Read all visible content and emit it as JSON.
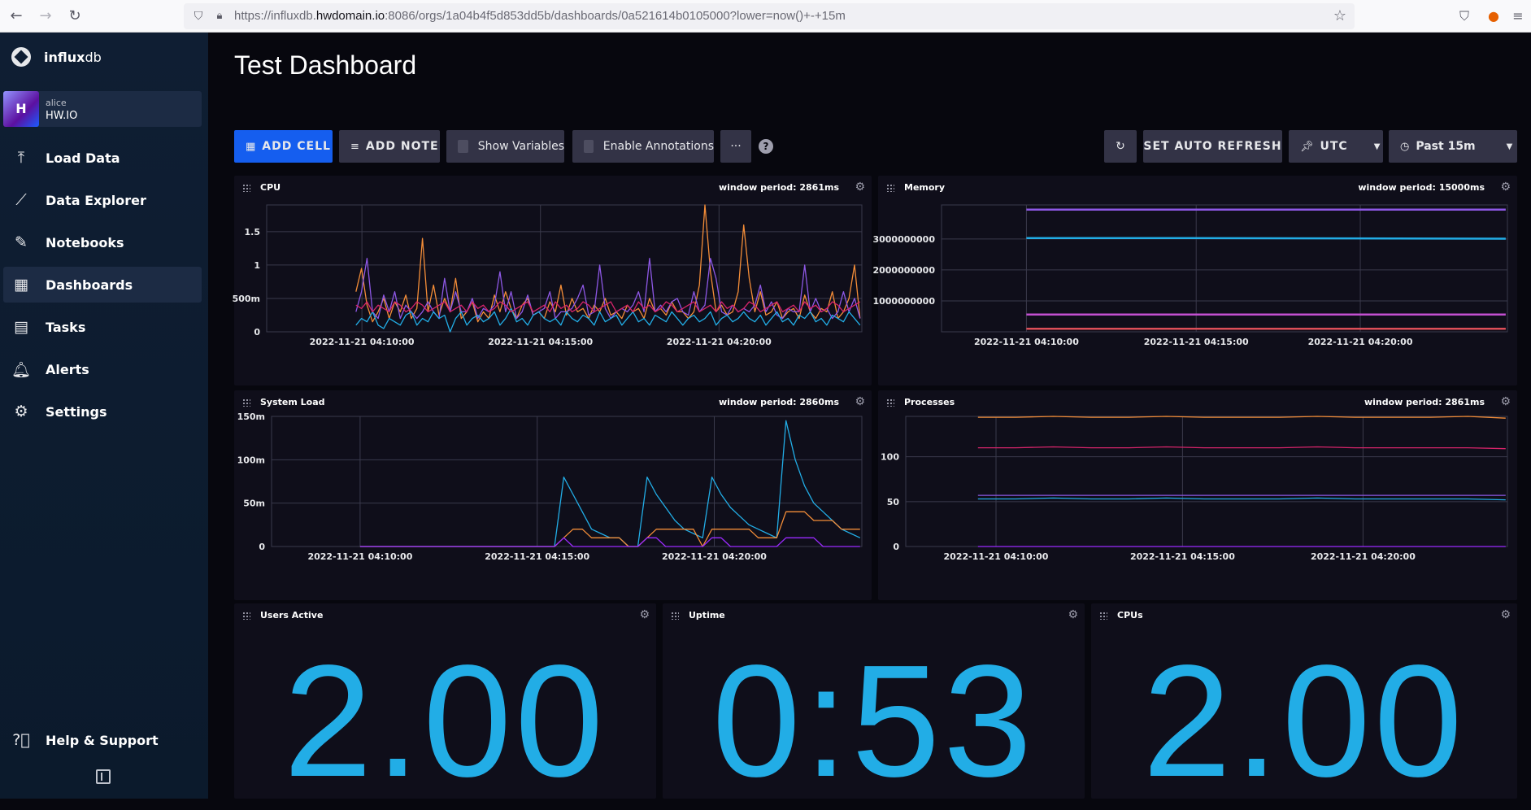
{
  "browser": {
    "url_prefix": "https://influxdb.",
    "url_domain": "hwdomain.io",
    "url_suffix": ":8086/orgs/1a04b4f5d853dd5b/dashboards/0a521614b0105000?lower=now()+-+15m"
  },
  "sidebar": {
    "logo_bold": "influx",
    "logo_light": "db",
    "user": {
      "initial": "H",
      "name": "alice",
      "org": "HW.IO"
    },
    "items": [
      {
        "label": "Load Data",
        "icon": "upload-icon"
      },
      {
        "label": "Data Explorer",
        "icon": "graph-icon"
      },
      {
        "label": "Notebooks",
        "icon": "pencil-icon"
      },
      {
        "label": "Dashboards",
        "icon": "dashboard-icon"
      },
      {
        "label": "Tasks",
        "icon": "calendar-icon"
      },
      {
        "label": "Alerts",
        "icon": "bell-icon"
      },
      {
        "label": "Settings",
        "icon": "gear-icon"
      }
    ],
    "help": "Help & Support"
  },
  "dashboard": {
    "title": "Test Dashboard",
    "toolbar": {
      "add_cell": "ADD CELL",
      "add_note": "ADD NOTE",
      "show_variables": "Show Variables",
      "enable_annotations": "Enable Annotations",
      "more": "···",
      "help": "?",
      "auto_refresh": "SET AUTO REFRESH",
      "timezone": "UTC",
      "time_range": "Past 15m"
    }
  },
  "colors": {
    "blue": "#22ade6",
    "purple": "#8e58e6",
    "orange": "#f48d38",
    "magenta": "#d6246a",
    "red": "#dc4e58",
    "violet": "#9b2aff",
    "pink": "#c24fd0"
  },
  "chart_data": [
    {
      "id": "cpu",
      "type": "line",
      "title": "CPU",
      "period": "window period: 2861ms",
      "yticks": [
        "0",
        "500m",
        "1",
        "1.5"
      ],
      "yvals": [
        0,
        0.5,
        1,
        1.5
      ],
      "ylim": [
        0,
        1.9
      ],
      "xticks": [
        "2022-11-21 04:10:00",
        "2022-11-21 04:15:00",
        "2022-11-21 04:20:00"
      ],
      "series": [
        {
          "color": "#f48d38",
          "values": [
            0.6,
            0.95,
            0.4,
            0.15,
            0.3,
            0.5,
            0.2,
            0.45,
            0.3,
            0.55,
            0.2,
            0.35,
            1.4,
            0.3,
            0.7,
            0.25,
            0.5,
            0.3,
            0.8,
            0.2,
            0.3,
            0.45,
            0.15,
            0.3,
            0.2,
            0.55,
            0.3,
            0.6,
            0.35,
            0.2,
            0.4,
            0.5,
            0.25,
            0.3,
            0.2,
            0.45,
            0.3,
            0.7,
            0.25,
            0.5,
            0.3,
            0.35,
            0.2,
            0.4,
            0.3,
            0.5,
            0.25,
            0.3,
            0.2,
            0.4,
            0.3,
            0.35,
            0.2,
            0.5,
            0.3,
            0.35,
            0.25,
            0.45,
            0.3,
            0.3,
            0.2,
            0.3,
            0.7,
            1.9,
            0.9,
            0.3,
            0.4,
            0.25,
            0.3,
            0.6,
            1.6,
            0.8,
            0.3,
            0.6,
            0.25,
            0.3,
            0.45,
            0.2,
            0.3,
            0.35,
            0.2,
            0.55,
            0.3,
            0.2,
            0.35,
            0.3,
            0.6,
            0.2,
            0.3,
            0.5,
            1.0,
            0.2
          ]
        },
        {
          "color": "#8e58e6",
          "values": [
            0.3,
            0.6,
            1.1,
            0.3,
            0.2,
            0.55,
            0.3,
            0.6,
            0.2,
            0.4,
            0.3,
            0.2,
            0.3,
            0.45,
            0.3,
            0.2,
            0.8,
            0.3,
            0.6,
            0.3,
            0.3,
            0.5,
            0.2,
            0.35,
            0.3,
            0.4,
            0.9,
            0.3,
            0.6,
            0.2,
            0.3,
            0.55,
            0.25,
            0.3,
            0.35,
            0.6,
            0.2,
            0.3,
            0.3,
            0.35,
            0.5,
            0.7,
            0.25,
            0.3,
            1.0,
            0.35,
            0.2,
            0.3,
            0.35,
            0.3,
            0.4,
            0.6,
            0.3,
            1.1,
            0.3,
            0.4,
            0.3,
            0.45,
            0.5,
            0.3,
            0.25,
            0.6,
            0.3,
            0.4,
            1.1,
            0.8,
            0.3,
            0.25,
            0.4,
            0.3,
            0.35,
            0.3,
            0.4,
            0.7,
            0.3,
            0.45,
            0.25,
            0.2,
            0.35,
            0.3,
            0.3,
            1.0,
            0.3,
            0.5,
            0.3,
            0.35,
            0.2,
            0.3,
            0.6,
            0.3,
            0.5,
            0.2
          ]
        },
        {
          "color": "#22ade6",
          "values": [
            0.1,
            0.2,
            0.15,
            0.3,
            0.1,
            0.05,
            0.2,
            0.15,
            0.1,
            0.25,
            0.3,
            0.1,
            0.2,
            0.15,
            0.3,
            0.2,
            0.25,
            0.0,
            0.2,
            0.3,
            0.1,
            0.2,
            0.25,
            0.15,
            0.2,
            0.3,
            0.1,
            0.2,
            0.35,
            0.15,
            0.2,
            0.1,
            0.25,
            0.3,
            0.2,
            0.15,
            0.2,
            0.1,
            0.3,
            0.2,
            0.15,
            0.25,
            0.2,
            0.1,
            0.3,
            0.15,
            0.2,
            0.25,
            0.1,
            0.2,
            0.3,
            0.15,
            0.2,
            0.1,
            0.25,
            0.2,
            0.15,
            0.3,
            0.2,
            0.1,
            0.2,
            0.25,
            0.15,
            0.2,
            0.3,
            0.1,
            0.2,
            0.25,
            0.15,
            0.2,
            0.3,
            0.2,
            0.15,
            0.25,
            0.1,
            0.2,
            0.3,
            0.15,
            0.2,
            0.1,
            0.25,
            0.2,
            0.3,
            0.15,
            0.2,
            0.1,
            0.25,
            0.2,
            0.15,
            0.3,
            0.2,
            0.1
          ]
        },
        {
          "color": "#d6246a",
          "values": [
            0.4,
            0.35,
            0.45,
            0.3,
            0.4,
            0.35,
            0.3,
            0.45,
            0.4,
            0.3,
            0.35,
            0.45,
            0.4,
            0.3,
            0.35,
            0.4,
            0.45,
            0.3,
            0.35,
            0.4,
            0.3,
            0.45,
            0.35,
            0.4,
            0.3,
            0.35,
            0.45,
            0.4,
            0.3,
            0.35,
            0.4,
            0.45,
            0.3,
            0.35,
            0.4,
            0.3,
            0.45,
            0.35,
            0.4,
            0.3,
            0.35,
            0.45,
            0.4,
            0.3,
            0.35,
            0.4,
            0.45,
            0.3,
            0.35,
            0.4,
            0.3,
            0.45,
            0.35,
            0.4,
            0.3,
            0.35,
            0.45,
            0.4,
            0.3,
            0.35,
            0.4,
            0.45,
            0.3,
            0.35,
            0.4,
            0.3,
            0.45,
            0.35,
            0.4,
            0.3,
            0.35,
            0.45,
            0.4,
            0.3,
            0.35,
            0.4,
            0.45,
            0.3,
            0.35,
            0.4,
            0.3,
            0.45,
            0.35,
            0.4,
            0.3,
            0.35,
            0.45,
            0.4,
            0.3,
            0.35,
            0.4,
            0.45
          ]
        }
      ]
    },
    {
      "id": "memory",
      "type": "line",
      "title": "Memory",
      "period": "window period: 15000ms",
      "yticks": [
        "1000000000",
        "2000000000",
        "3000000000"
      ],
      "yvals": [
        1000000000,
        2000000000,
        3000000000
      ],
      "ylim": [
        0,
        4100000000
      ],
      "xticks": [
        "2022-11-21 04:10:00",
        "2022-11-21 04:15:00",
        "2022-11-21 04:20:00"
      ],
      "start": 0.15,
      "series": [
        {
          "color": "#8e58e6",
          "values": [
            3950000000,
            3950000000,
            3950000000,
            3950000000
          ]
        },
        {
          "color": "#22ade6",
          "values": [
            3030000000,
            3030000000,
            3020000000,
            3010000000
          ]
        },
        {
          "color": "#c24fd0",
          "values": [
            560000000,
            560000000,
            560000000,
            560000000
          ]
        },
        {
          "color": "#dc4e58",
          "values": [
            100000000,
            100000000,
            100000000,
            100000000
          ]
        }
      ]
    },
    {
      "id": "sysload",
      "type": "line",
      "title": "System Load",
      "period": "window period: 2860ms",
      "yticks": [
        "0",
        "50m",
        "100m",
        "150m"
      ],
      "yvals": [
        0,
        0.05,
        0.1,
        0.15
      ],
      "ylim": [
        0,
        0.15
      ],
      "xticks": [
        "2022-11-21 04:10:00",
        "2022-11-21 04:15:00",
        "2022-11-21 04:20:00"
      ],
      "start": 0.15,
      "series": [
        {
          "color": "#22ade6",
          "values": [
            0,
            0,
            0,
            0,
            0,
            0,
            0,
            0,
            0,
            0,
            0,
            0,
            0,
            0,
            0,
            0,
            0,
            0,
            0,
            0,
            0,
            0,
            0.08,
            0.06,
            0.04,
            0.02,
            0.015,
            0.01,
            0.01,
            0,
            0,
            0.08,
            0.06,
            0.045,
            0.03,
            0.02,
            0.015,
            0.01,
            0.08,
            0.06,
            0.045,
            0.035,
            0.025,
            0.02,
            0.015,
            0.01,
            0.145,
            0.1,
            0.07,
            0.05,
            0.04,
            0.03,
            0.02,
            0.015,
            0.01
          ]
        },
        {
          "color": "#f48d38",
          "values": [
            0,
            0,
            0,
            0,
            0,
            0,
            0,
            0,
            0,
            0,
            0,
            0,
            0,
            0,
            0,
            0,
            0,
            0,
            0,
            0,
            0,
            0,
            0.01,
            0.02,
            0.02,
            0.01,
            0.01,
            0.01,
            0.01,
            0,
            0,
            0.01,
            0.02,
            0.02,
            0.02,
            0.02,
            0.02,
            0,
            0.02,
            0.02,
            0.02,
            0.02,
            0.02,
            0.01,
            0.01,
            0.01,
            0.04,
            0.04,
            0.04,
            0.03,
            0.03,
            0.03,
            0.02,
            0.02,
            0.02
          ]
        },
        {
          "color": "#9b2aff",
          "values": [
            0,
            0,
            0,
            0,
            0,
            0,
            0,
            0,
            0,
            0,
            0,
            0,
            0,
            0,
            0,
            0,
            0,
            0,
            0,
            0,
            0,
            0,
            0.01,
            0.0,
            0.0,
            0.0,
            0.0,
            0.0,
            0,
            0,
            0,
            0.01,
            0.01,
            0,
            0,
            0,
            0,
            0,
            0.01,
            0.01,
            0,
            0,
            0,
            0,
            0,
            0,
            0.01,
            0.01,
            0.01,
            0.01,
            0,
            0,
            0,
            0,
            0
          ]
        }
      ]
    },
    {
      "id": "processes",
      "type": "line",
      "title": "Processes",
      "period": "window period: 2861ms",
      "yticks": [
        "0",
        "50",
        "100"
      ],
      "yvals": [
        0,
        50,
        100
      ],
      "ylim": [
        0,
        145
      ],
      "xticks": [
        "2022-11-21 04:10:00",
        "2022-11-21 04:15:00",
        "2022-11-21 04:20:00"
      ],
      "start": 0.12,
      "series": [
        {
          "color": "#f48d38",
          "values": [
            144,
            144,
            145,
            144,
            144,
            145,
            144,
            144,
            144,
            145,
            144,
            144,
            144,
            145,
            143
          ]
        },
        {
          "color": "#d6246a",
          "values": [
            110,
            110,
            111,
            110,
            110,
            111,
            110,
            110,
            110,
            111,
            110,
            110,
            110,
            110,
            109
          ]
        },
        {
          "color": "#8e58e6",
          "values": [
            57,
            57,
            57,
            57,
            57,
            57,
            57,
            57,
            57,
            57,
            57,
            57,
            57,
            57,
            57
          ]
        },
        {
          "color": "#22ade6",
          "values": [
            53,
            53,
            54,
            53,
            53,
            54,
            53,
            53,
            53,
            54,
            53,
            53,
            53,
            53,
            52
          ]
        },
        {
          "color": "#9b2aff",
          "values": [
            0,
            0,
            0,
            0,
            0,
            0,
            0,
            0,
            0,
            0,
            0,
            0,
            0,
            0,
            0
          ]
        }
      ]
    }
  ],
  "stats": [
    {
      "title": "Users Active",
      "value": "2.00"
    },
    {
      "title": "Uptime",
      "value": "0:53"
    },
    {
      "title": "CPUs",
      "value": "2.00"
    }
  ]
}
